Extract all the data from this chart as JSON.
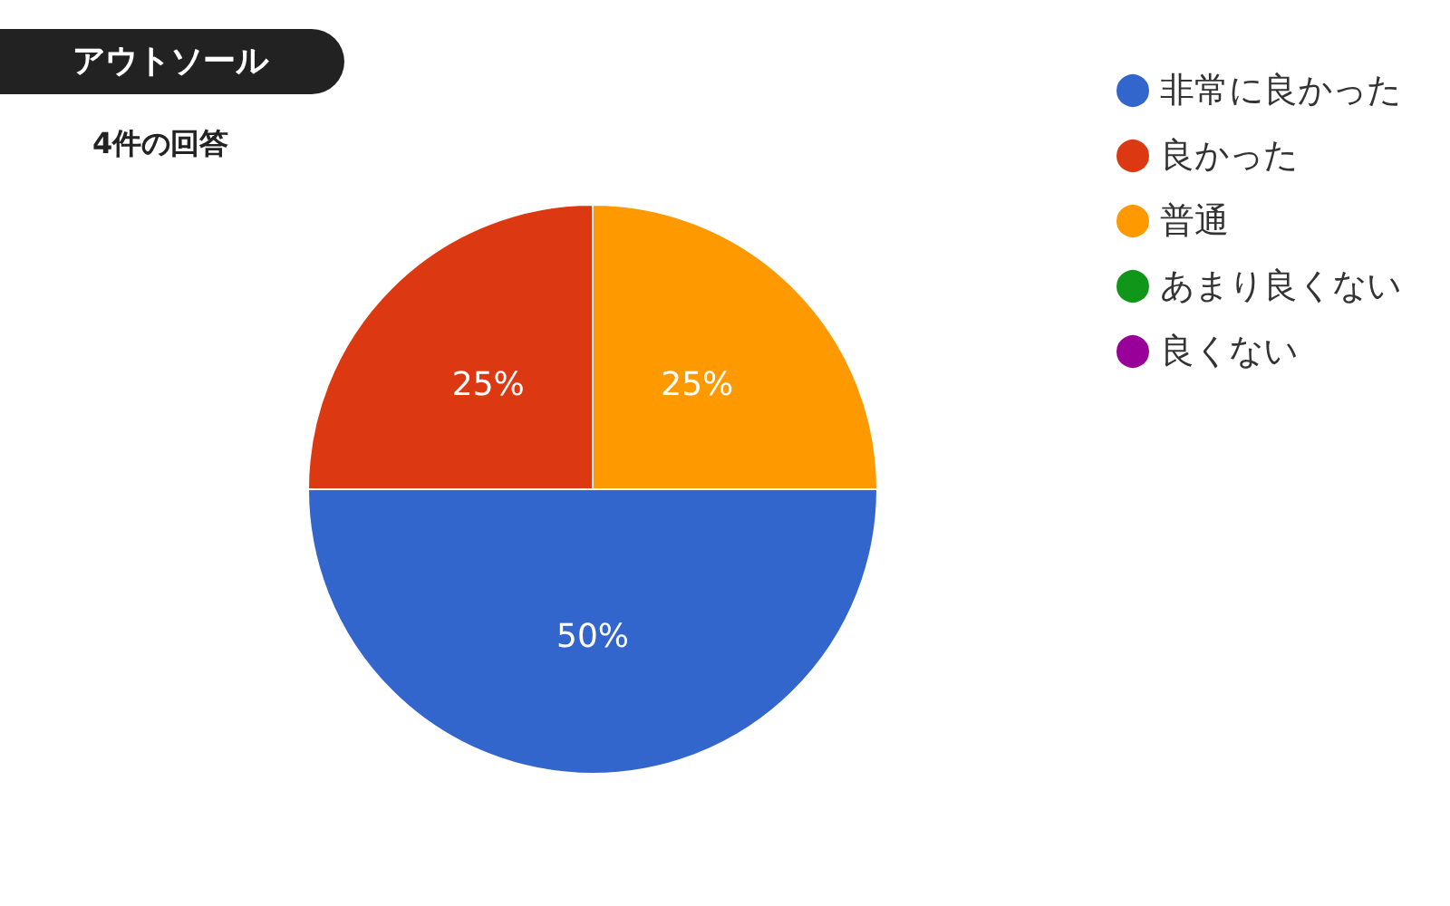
{
  "chart_data": {
    "type": "pie",
    "title": "アウトソール",
    "subtitle": "4件の回答",
    "categories": [
      "非常に良かった",
      "良かった",
      "普通",
      "あまり良くない",
      "良くない"
    ],
    "values": [
      50,
      25,
      25,
      0,
      0
    ],
    "colors": [
      "#3366cc",
      "#dc3912",
      "#ff9900",
      "#109618",
      "#990099"
    ],
    "value_labels": [
      "50%",
      "25%",
      "25%",
      null,
      null
    ],
    "legend": "top right"
  }
}
